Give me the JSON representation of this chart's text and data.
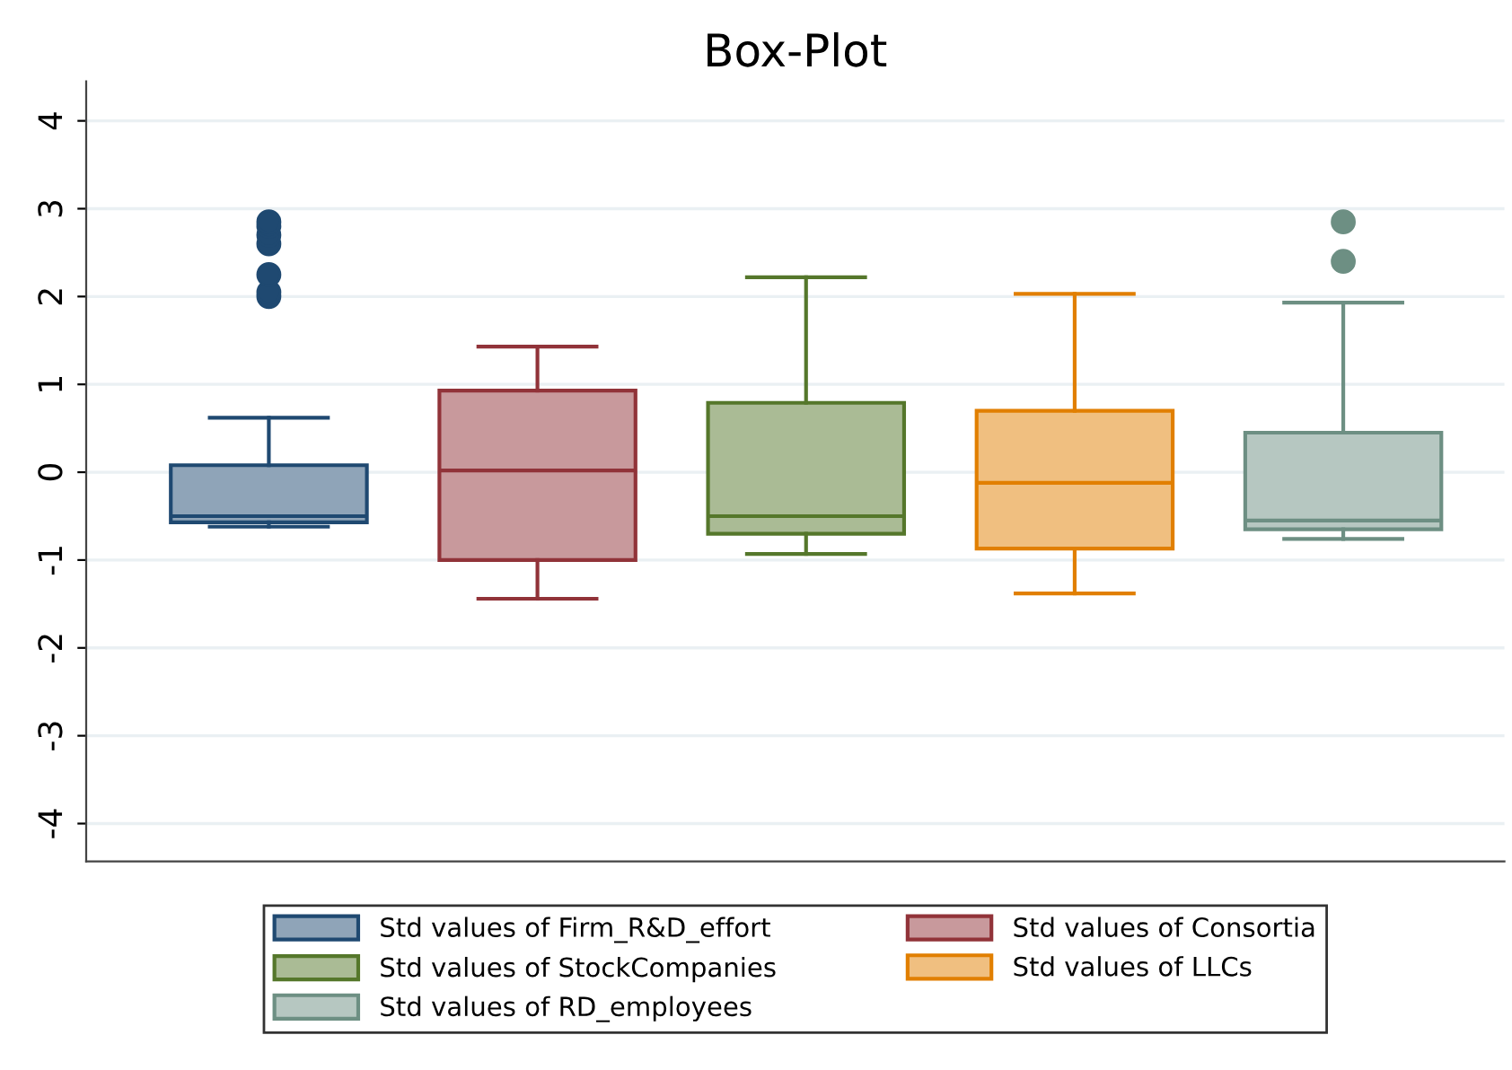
{
  "chart_data": {
    "type": "box",
    "title": "Box-Plot",
    "categories": [
      null,
      null,
      null,
      null,
      null
    ],
    "series": [
      {
        "name": "Std values of Firm_R&D_effort",
        "color": "#8fa4b8",
        "boxes": [
          {
            "low": -0.62,
            "q1": -0.57,
            "median": -0.5,
            "q3": 0.08,
            "high": 0.62,
            "outliers": [
              2.0,
              2.05,
              2.25,
              2.6,
              2.7,
              2.8,
              2.85
            ]
          },
          null,
          null,
          null,
          null
        ]
      },
      {
        "name": "Std values of Consortia",
        "color": "#c8999c",
        "boxes": [
          null,
          {
            "low": -1.44,
            "q1": -1.0,
            "median": 0.02,
            "q3": 0.93,
            "high": 1.43
          },
          null,
          null,
          null
        ]
      },
      {
        "name": "Std values of StockCompanies",
        "color": "#aabb95",
        "boxes": [
          null,
          null,
          {
            "low": -0.93,
            "q1": -0.7,
            "median": -0.5,
            "q3": 0.79,
            "high": 2.22
          },
          null,
          null
        ]
      },
      {
        "name": "Std values of LLCs",
        "color": "#f0bf80",
        "boxes": [
          null,
          null,
          null,
          {
            "low": -1.38,
            "q1": -0.87,
            "median": -0.12,
            "q3": 0.7,
            "high": 2.03
          },
          null
        ]
      },
      {
        "name": "Std values of RD_employees",
        "color": "#b6c7c1",
        "boxes": [
          null,
          null,
          null,
          null,
          {
            "low": -0.76,
            "q1": -0.65,
            "median": -0.55,
            "q3": 0.45,
            "high": 1.93,
            "outliers": [
              2.4,
              2.85
            ]
          }
        ]
      }
    ],
    "ylim": [
      -4.43,
      4.45
    ],
    "yticks": [
      -4,
      -3,
      -2,
      -1,
      0,
      1,
      2,
      3,
      4
    ],
    "grid": "y",
    "legend": "bottom",
    "tick_labels": "y"
  }
}
